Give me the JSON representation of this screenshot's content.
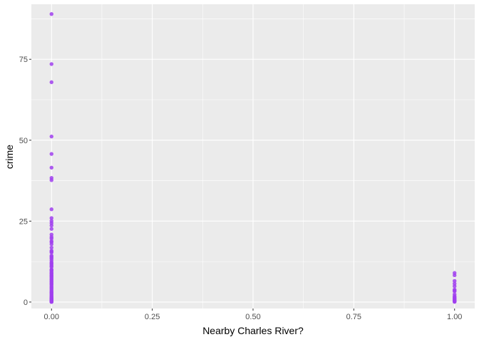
{
  "chart_data": {
    "type": "scatter",
    "xlabel": "Nearby Charles River?",
    "ylabel": "crime",
    "xlim": [
      -0.05,
      1.05
    ],
    "ylim": [
      -2,
      92
    ],
    "xticks": [
      0.0,
      0.25,
      0.5,
      0.75,
      1.0
    ],
    "xtick_labels": [
      "0.00",
      "0.25",
      "0.50",
      "0.75",
      "1.00"
    ],
    "yticks": [
      0,
      25,
      50,
      75
    ],
    "ytick_labels": [
      "0",
      "25",
      "50",
      "75"
    ],
    "grid": true,
    "point_color": "#a040ee",
    "panel_color": "#ebebeb",
    "grid_color": "#ffffff",
    "series": [
      {
        "x": 0,
        "values": [
          88.98,
          73.53,
          67.92,
          51.14,
          45.75,
          41.53,
          38.35,
          37.66,
          28.66,
          25.95,
          25.05,
          24.39,
          23.65,
          22.6,
          20.85,
          20.08,
          19.61,
          18.81,
          18.5,
          17.87,
          16.81,
          15.88,
          15.58,
          15.29,
          14.33,
          14.05,
          13.68,
          13.36,
          12.8,
          12.25,
          11.95,
          11.58,
          11.16,
          10.83,
          10.06,
          9.92,
          9.72,
          9.33,
          8.98,
          8.79,
          8.49,
          8.15,
          7.99,
          7.67,
          7.36,
          7.05,
          6.8,
          6.44,
          6.21,
          5.87,
          5.58,
          5.29,
          4.87,
          4.54,
          4.22,
          3.85,
          3.47,
          3.14,
          2.92,
          2.73,
          2.45,
          2.15,
          1.83,
          1.63,
          1.42,
          1.23,
          1.13,
          0.98,
          0.84,
          0.72,
          0.63,
          0.54,
          0.45,
          0.37,
          0.29,
          0.22,
          0.15,
          0.1,
          0.06,
          0.02
        ]
      },
      {
        "x": 1,
        "values": [
          8.98,
          8.27,
          6.54,
          5.67,
          4.89,
          3.85,
          3.32,
          3.57,
          2.37,
          1.83,
          1.51,
          1.27,
          1.12,
          0.87,
          0.62,
          0.52,
          0.37,
          0.24,
          0.13,
          0.06
        ]
      }
    ]
  }
}
